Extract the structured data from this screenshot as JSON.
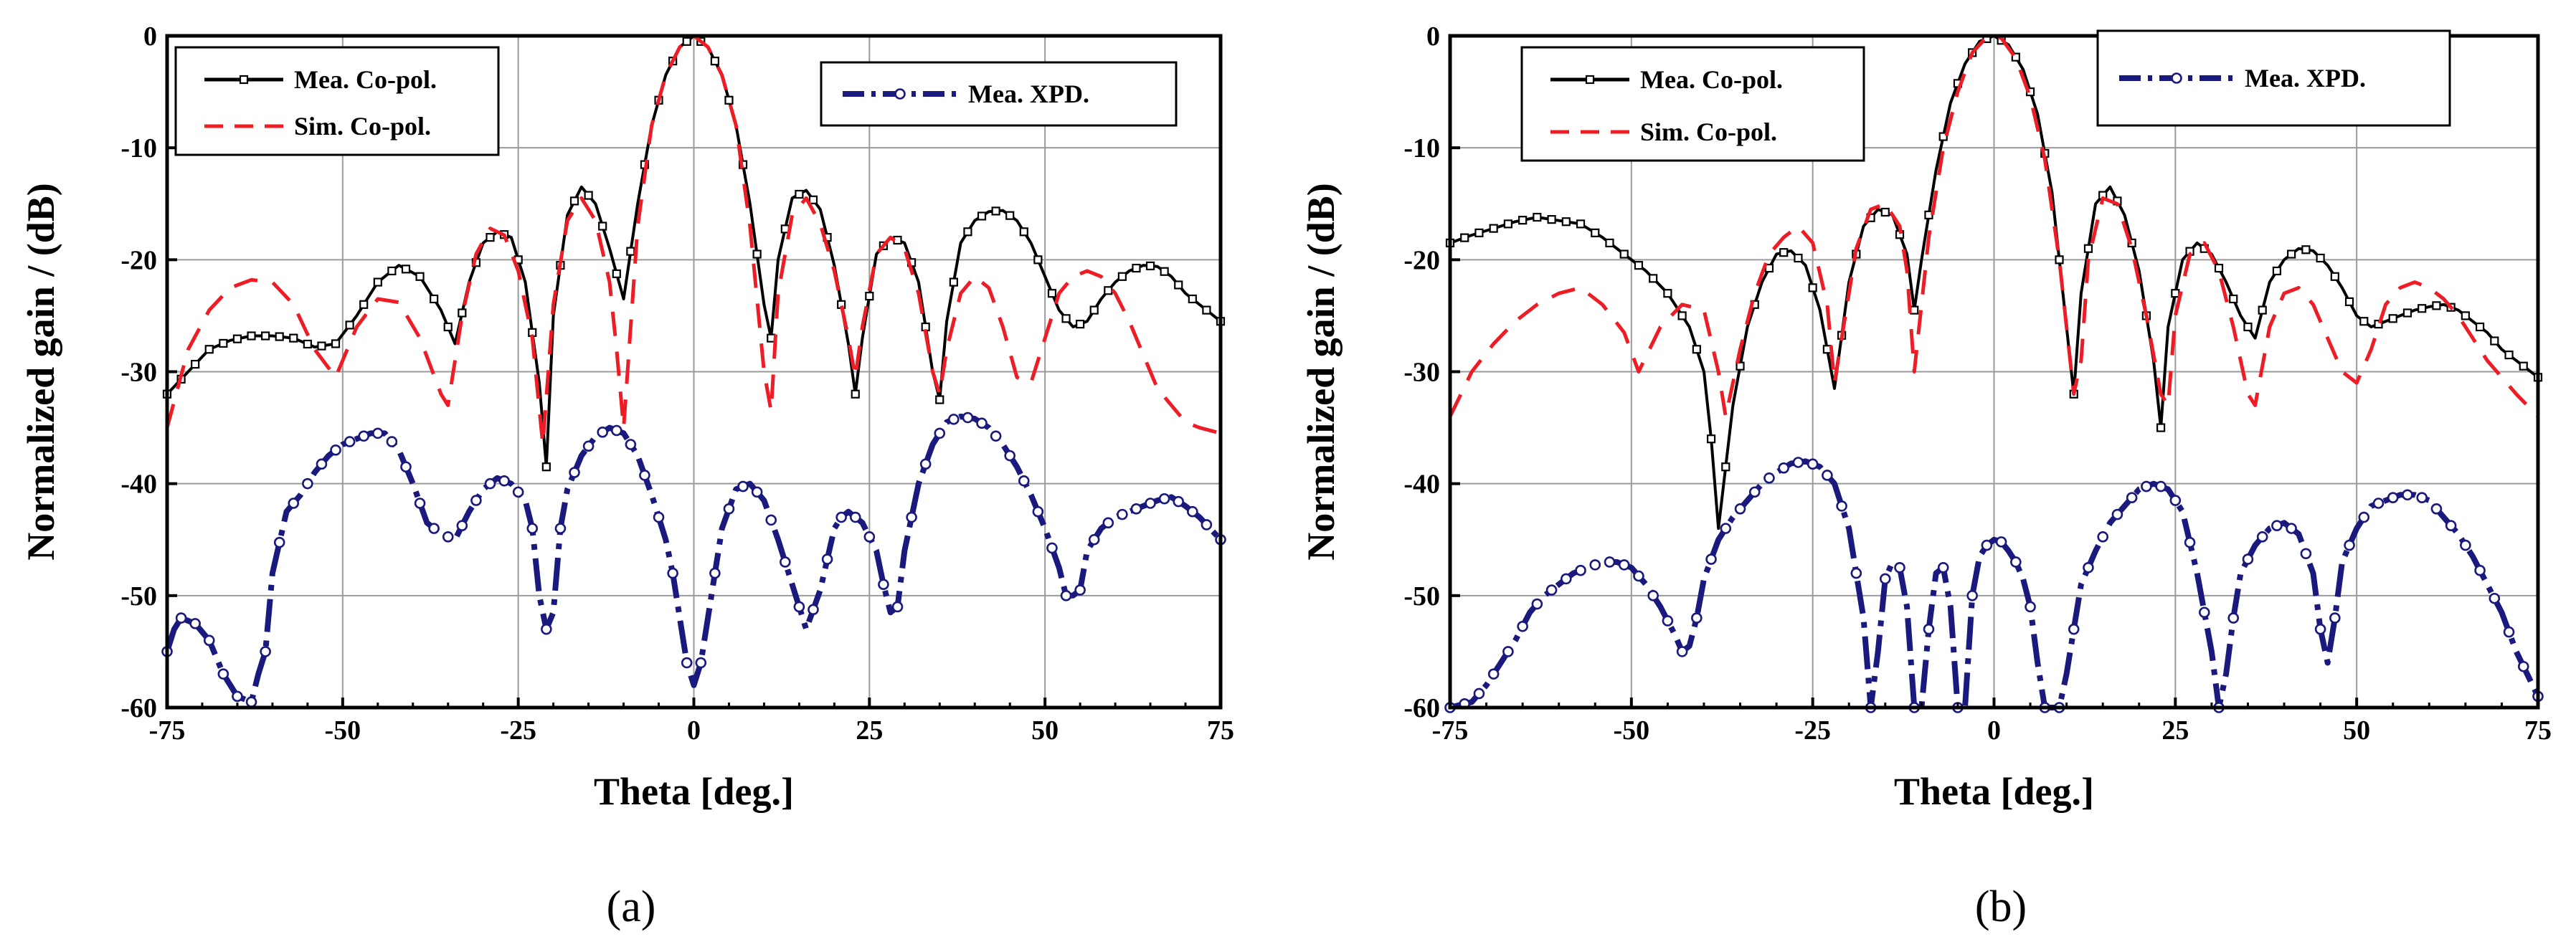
{
  "chart_data": [
    {
      "type": "line",
      "panel_label": "(a)",
      "xlabel": "Theta [deg.]",
      "ylabel": "Normalized gain / (dB)",
      "xlim": [
        -75,
        75
      ],
      "ylim": [
        -60,
        0
      ],
      "xticks": [
        -75,
        -50,
        -25,
        0,
        25,
        50,
        75
      ],
      "yticks": [
        0,
        -10,
        -20,
        -30,
        -40,
        -50,
        -60
      ],
      "grid": true,
      "legends": [
        {
          "position": "top-left",
          "entries": [
            "Mea. Co-pol.",
            "Sim. Co-pol."
          ]
        },
        {
          "position": "top-right",
          "entries": [
            "Mea. XPD."
          ]
        }
      ],
      "series": [
        {
          "name": "Mea. Co-pol.",
          "color": "#000000",
          "style": "solid",
          "marker": "square",
          "x": [
            -75,
            -72,
            -69,
            -66,
            -63,
            -60,
            -57,
            -54,
            -51,
            -48,
            -45,
            -42,
            -39,
            -36,
            -34,
            -32,
            -30,
            -28,
            -26,
            -24,
            -22,
            -21,
            -20,
            -18,
            -16,
            -14,
            -12,
            -10,
            -8,
            -6,
            -4,
            -2,
            0,
            2,
            4,
            6,
            8,
            10,
            11,
            12,
            14,
            16,
            18,
            20,
            22,
            23,
            24,
            26,
            28,
            30,
            32,
            34,
            35,
            36,
            38,
            40,
            42,
            44,
            46,
            48,
            50,
            52,
            54,
            56,
            58,
            60,
            62,
            64,
            66,
            68,
            70,
            72,
            75
          ],
          "y": [
            -32,
            -30,
            -28,
            -27.2,
            -26.8,
            -26.8,
            -27,
            -27.8,
            -27.5,
            -25,
            -22,
            -20.5,
            -21.5,
            -24.5,
            -27.5,
            -22,
            -18.5,
            -17.5,
            -18,
            -22,
            -31,
            -38.5,
            -25,
            -16,
            -13.5,
            -15,
            -19,
            -23.5,
            -15,
            -8,
            -3.5,
            -1,
            0,
            -1,
            -3.5,
            -8,
            -15,
            -24,
            -27,
            -20,
            -14.5,
            -13.8,
            -15.5,
            -20.5,
            -27.5,
            -32,
            -27,
            -19.5,
            -18,
            -18.5,
            -22,
            -30,
            -32.5,
            -25.5,
            -18.5,
            -16.5,
            -15.7,
            -15.6,
            -16.5,
            -18.5,
            -21.5,
            -24.5,
            -26,
            -25.5,
            -23.5,
            -22,
            -21,
            -20.5,
            -20.6,
            -21.5,
            -23,
            -24,
            -25.5
          ]
        },
        {
          "name": "Sim. Co-pol.",
          "color": "#ee1c24",
          "style": "dashed",
          "marker": "none",
          "x": [
            -75,
            -72,
            -69,
            -66,
            -63,
            -60,
            -57,
            -54,
            -51,
            -48,
            -45,
            -42,
            -39,
            -36,
            -35,
            -33,
            -31,
            -29,
            -27,
            -25,
            -23,
            -21.5,
            -20,
            -18,
            -16,
            -14,
            -12,
            -11,
            -10,
            -8,
            -6,
            -4,
            -2,
            0,
            2,
            4,
            6,
            8,
            10,
            11,
            12,
            14,
            16,
            18,
            20,
            22,
            23,
            24,
            26,
            28,
            30,
            32,
            34,
            35,
            36,
            38,
            40,
            42,
            44,
            46,
            48,
            50,
            52,
            54,
            56,
            58,
            60,
            62,
            64,
            66,
            68,
            70,
            72,
            75
          ],
          "y": [
            -35,
            -28,
            -24.5,
            -22.5,
            -21.8,
            -22,
            -24,
            -28,
            -30.5,
            -26,
            -23.5,
            -23.8,
            -27,
            -32,
            -33,
            -25,
            -19.5,
            -17.2,
            -17.8,
            -21,
            -27,
            -36.5,
            -24,
            -16.5,
            -14.5,
            -16.5,
            -22,
            -28,
            -35,
            -17,
            -8,
            -3.5,
            -1,
            0,
            -1,
            -3.5,
            -8,
            -17,
            -30,
            -33.5,
            -23,
            -16,
            -14.5,
            -16.8,
            -21,
            -27,
            -30.5,
            -26,
            -19.5,
            -18,
            -19,
            -23,
            -30,
            -32,
            -28,
            -23,
            -21.5,
            -22.5,
            -26,
            -30.5,
            -31,
            -27,
            -23,
            -21.5,
            -21,
            -21.5,
            -23,
            -25.5,
            -28.5,
            -31.5,
            -33,
            -34.5,
            -35,
            -35.5
          ]
        },
        {
          "name": "Mea. XPD.",
          "color": "#1a1a7e",
          "style": "dash-dot",
          "marker": "circle",
          "x": [
            -75,
            -74,
            -73,
            -71,
            -69,
            -67,
            -65,
            -63,
            -62,
            -61,
            -60,
            -58,
            -56,
            -54,
            -52,
            -50,
            -48,
            -46,
            -44,
            -42,
            -40,
            -38,
            -36,
            -34,
            -32,
            -30,
            -28,
            -26,
            -24,
            -23,
            -22,
            -21,
            -20,
            -19,
            -18,
            -16,
            -14,
            -12,
            -10,
            -8,
            -6,
            -4,
            -3,
            -2,
            -1,
            0,
            1,
            2,
            3,
            4,
            6,
            8,
            10,
            12,
            14,
            16,
            18,
            20,
            21,
            22,
            24,
            26,
            27,
            28,
            29,
            30,
            32,
            34,
            36,
            38,
            40,
            42,
            44,
            46,
            48,
            50,
            52,
            53,
            54,
            55,
            56,
            58,
            60,
            62,
            64,
            66,
            68,
            70,
            72,
            75
          ],
          "y": [
            -55,
            -53,
            -52,
            -52.5,
            -54,
            -57,
            -59,
            -59.5,
            -57,
            -55,
            -48,
            -42.5,
            -41,
            -39,
            -37.5,
            -36.5,
            -36,
            -35.5,
            -35.5,
            -37,
            -40,
            -43.5,
            -44.5,
            -45,
            -42.5,
            -40.5,
            -39.5,
            -40,
            -41.5,
            -44,
            -50,
            -53,
            -51.5,
            -44,
            -40.5,
            -37.5,
            -35.8,
            -35,
            -35.5,
            -37.5,
            -41,
            -45,
            -48,
            -52,
            -56,
            -58,
            -56,
            -52,
            -48,
            -44,
            -40.5,
            -40,
            -41.5,
            -45,
            -49,
            -53,
            -49.5,
            -44,
            -43,
            -42.5,
            -43.5,
            -46,
            -49,
            -51.5,
            -51,
            -46,
            -40,
            -36.5,
            -34.5,
            -34,
            -34.2,
            -35,
            -36.5,
            -38.5,
            -41,
            -44,
            -47.5,
            -50,
            -50,
            -49.5,
            -46,
            -44,
            -43,
            -42.5,
            -42,
            -41.5,
            -41.2,
            -42,
            -43,
            -45
          ]
        }
      ]
    },
    {
      "type": "line",
      "panel_label": "(b)",
      "xlabel": "Theta [deg.]",
      "ylabel": "Normalized gain / (dB)",
      "xlim": [
        -75,
        75
      ],
      "ylim": [
        -60,
        0
      ],
      "xticks": [
        -75,
        -50,
        -25,
        0,
        25,
        50,
        75
      ],
      "yticks": [
        0,
        -10,
        -20,
        -30,
        -40,
        -50,
        -60
      ],
      "grid": true,
      "legends": [
        {
          "position": "top-left",
          "entries": [
            "Mea. Co-pol.",
            "Sim. Co-pol."
          ]
        },
        {
          "position": "top-right",
          "entries": [
            "Mea. XPD."
          ]
        }
      ],
      "series": [
        {
          "name": "Mea. Co-pol.",
          "color": "#000000",
          "style": "solid",
          "marker": "square",
          "x": [
            -75,
            -72,
            -69,
            -66,
            -63,
            -60,
            -57,
            -54,
            -51,
            -48,
            -45,
            -42,
            -40,
            -39,
            -38,
            -36,
            -34,
            -32,
            -30,
            -28,
            -26,
            -24,
            -23,
            -22,
            -20,
            -18,
            -16,
            -14,
            -12,
            -11,
            -10,
            -8,
            -6,
            -4,
            -2,
            0,
            2,
            4,
            6,
            8,
            10,
            11,
            12,
            14,
            16,
            18,
            20,
            22,
            23,
            24,
            26,
            28,
            30,
            32,
            34,
            36,
            38,
            40,
            42,
            44,
            46,
            48,
            50,
            52,
            54,
            56,
            58,
            60,
            62,
            64,
            66,
            68,
            70,
            72,
            75
          ],
          "y": [
            -18.5,
            -17.8,
            -17.2,
            -16.6,
            -16.2,
            -16.5,
            -16.8,
            -18,
            -19.5,
            -21,
            -23,
            -26,
            -30,
            -36,
            -44,
            -33,
            -26,
            -22,
            -19.5,
            -19.2,
            -20.5,
            -24.5,
            -28,
            -31.5,
            -22,
            -17,
            -15.5,
            -16,
            -19.5,
            -24.5,
            -20,
            -12,
            -6,
            -2.5,
            -0.5,
            0,
            -0.8,
            -3,
            -7,
            -14,
            -26,
            -32,
            -23,
            -15,
            -13.5,
            -16,
            -21,
            -29,
            -35,
            -26,
            -20,
            -18.5,
            -19.5,
            -22,
            -25,
            -27,
            -22,
            -20,
            -19,
            -19.2,
            -20.5,
            -22.5,
            -25,
            -26,
            -25.5,
            -25,
            -24.5,
            -24.2,
            -24,
            -24.5,
            -25.5,
            -26.5,
            -28,
            -29,
            -30.5
          ]
        },
        {
          "name": "Sim. Co-pol.",
          "color": "#ee1c24",
          "style": "dashed",
          "marker": "none",
          "x": [
            -75,
            -72,
            -69,
            -66,
            -63,
            -60,
            -57,
            -54,
            -51,
            -49,
            -46,
            -43,
            -40,
            -38,
            -37,
            -35,
            -33,
            -31,
            -29,
            -27,
            -25,
            -23,
            -22,
            -21,
            -19,
            -17,
            -15,
            -13,
            -12,
            -11,
            -9,
            -7,
            -5,
            -3,
            -1,
            0,
            1,
            3,
            5,
            7,
            9,
            11,
            12,
            13,
            15,
            17,
            19,
            21,
            23,
            24,
            25,
            27,
            29,
            31,
            33,
            35,
            36,
            38,
            40,
            42,
            44,
            46,
            48,
            50,
            52,
            54,
            56,
            58,
            60,
            62,
            64,
            66,
            68,
            70,
            72,
            75
          ],
          "y": [
            -34,
            -30,
            -27.5,
            -25.5,
            -24,
            -23,
            -22.5,
            -24,
            -26.5,
            -30,
            -26,
            -24,
            -24.5,
            -30,
            -34,
            -28,
            -23,
            -19.5,
            -18,
            -17,
            -18.5,
            -24,
            -31,
            -27,
            -19,
            -15.5,
            -15,
            -17,
            -21,
            -30,
            -18,
            -10,
            -5,
            -1.5,
            -0.1,
            0,
            -0.2,
            -2,
            -5.5,
            -11,
            -20,
            -32,
            -29,
            -20,
            -14.5,
            -15,
            -19,
            -25,
            -32,
            -33,
            -25,
            -19.5,
            -18.5,
            -21,
            -26,
            -32,
            -33,
            -26,
            -23,
            -22.5,
            -24,
            -27,
            -30,
            -31,
            -28,
            -24,
            -22.5,
            -22,
            -22.5,
            -23.5,
            -25,
            -27,
            -29,
            -30.5,
            -32,
            -34
          ]
        },
        {
          "name": "Mea. XPD.",
          "color": "#1a1a7e",
          "style": "dash-dot",
          "marker": "circle",
          "x": [
            -75,
            -72,
            -70,
            -68,
            -66,
            -64,
            -62,
            -60,
            -58,
            -56,
            -54,
            -52,
            -50,
            -48,
            -46,
            -44,
            -43,
            -42,
            -41,
            -40,
            -38,
            -36,
            -34,
            -32,
            -30,
            -28,
            -26,
            -24,
            -22,
            -20,
            -18,
            -17,
            -16,
            -15,
            -14,
            -13,
            -12,
            -11,
            -10,
            -9,
            -8,
            -7,
            -6,
            -5,
            -4,
            -3,
            -2,
            -1,
            0,
            1,
            2,
            3,
            4,
            5,
            6,
            7,
            8,
            9,
            10,
            11,
            12,
            14,
            16,
            18,
            20,
            22,
            24,
            26,
            28,
            30,
            31,
            32,
            33,
            34,
            36,
            38,
            40,
            42,
            44,
            45,
            46,
            47,
            48,
            50,
            52,
            54,
            56,
            58,
            60,
            62,
            64,
            66,
            68,
            70,
            72,
            75
          ],
          "y": [
            -60,
            -59.5,
            -58,
            -56,
            -54,
            -51.5,
            -50,
            -49,
            -48,
            -47.5,
            -47,
            -47,
            -47.5,
            -49,
            -51,
            -53.5,
            -55,
            -54.5,
            -52,
            -48.5,
            -45,
            -43,
            -41.5,
            -40,
            -39,
            -38.2,
            -38,
            -38.5,
            -40,
            -44,
            -52,
            -60,
            -55,
            -48.5,
            -47,
            -47.5,
            -51,
            -60,
            -60,
            -53,
            -48,
            -47.5,
            -51,
            -60,
            -60,
            -50,
            -46.5,
            -45.5,
            -45,
            -45.2,
            -46,
            -47,
            -48.5,
            -51,
            -56,
            -60,
            -60,
            -60,
            -57,
            -53,
            -49,
            -46,
            -43.5,
            -42,
            -40.5,
            -40,
            -40.5,
            -42.5,
            -48,
            -55,
            -60,
            -57,
            -52,
            -48,
            -45.5,
            -44,
            -43.5,
            -44.5,
            -48,
            -53,
            -56,
            -52,
            -47,
            -44,
            -42,
            -41.5,
            -41,
            -41,
            -41.5,
            -43,
            -44.5,
            -46.5,
            -49,
            -51.5,
            -55,
            -59
          ]
        }
      ]
    }
  ]
}
